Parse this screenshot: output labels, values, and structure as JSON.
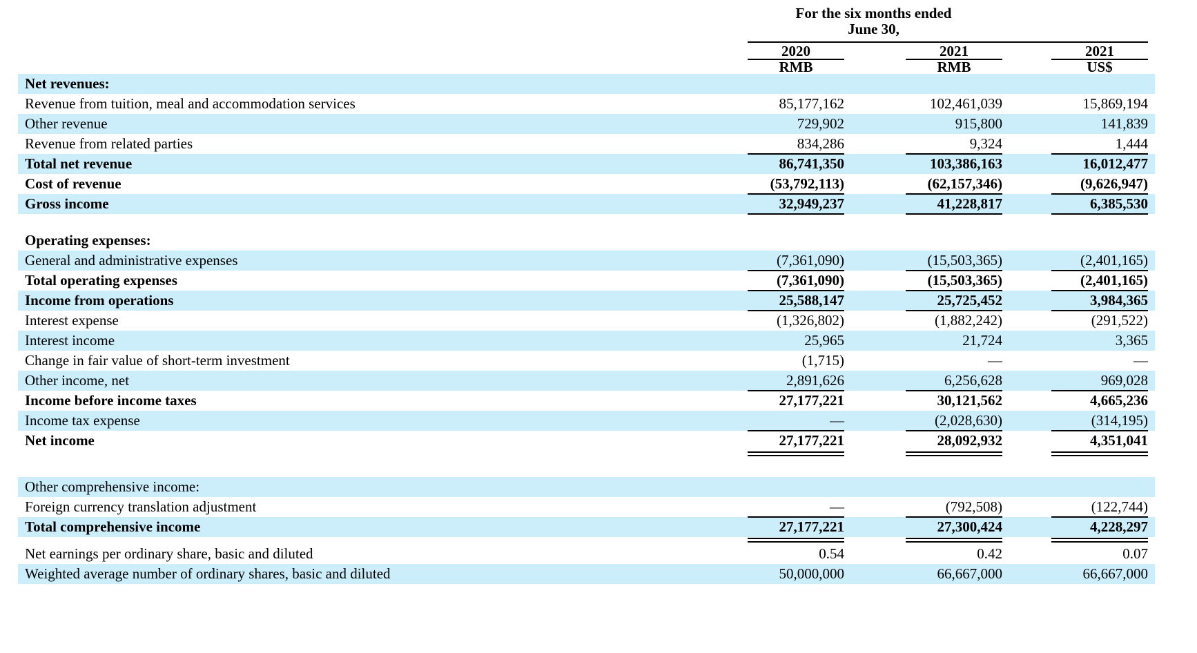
{
  "header": {
    "period_line1": "For the six months ended",
    "period_line2": "June 30,",
    "columns": [
      {
        "year": "2020",
        "currency": "RMB"
      },
      {
        "year": "2021",
        "currency": "RMB"
      },
      {
        "year": "2021",
        "currency": "US$"
      }
    ]
  },
  "colors": {
    "stripe": "#cceefb",
    "rule": "#000000",
    "text": "#000000",
    "background": "#ffffff"
  },
  "rows": [
    {
      "type": "data",
      "label": "Net revenues:",
      "values": [
        "",
        "",
        ""
      ],
      "bold": true,
      "shaded": true,
      "rule": "none"
    },
    {
      "type": "data",
      "label": "Revenue from tuition, meal and accommodation services",
      "values": [
        "85,177,162",
        "102,461,039",
        "15,869,194"
      ],
      "bold": false,
      "shaded": false,
      "rule": "none"
    },
    {
      "type": "data",
      "label": "Other revenue",
      "values": [
        "729,902",
        "915,800",
        "141,839"
      ],
      "bold": false,
      "shaded": true,
      "rule": "none"
    },
    {
      "type": "data",
      "label": "Revenue from related parties",
      "values": [
        "834,286",
        "9,324",
        "1,444"
      ],
      "bold": false,
      "shaded": false,
      "rule": "single"
    },
    {
      "type": "data",
      "label": "Total net revenue",
      "values": [
        "86,741,350",
        "103,386,163",
        "16,012,477"
      ],
      "bold": true,
      "shaded": true,
      "rule": "none"
    },
    {
      "type": "data",
      "label": "Cost of revenue",
      "values": [
        "(53,792,113)",
        "(62,157,346)",
        "(9,626,947)"
      ],
      "bold": true,
      "shaded": false,
      "rule": "single"
    },
    {
      "type": "data",
      "label": "Gross income",
      "values": [
        "32,949,237",
        "41,228,817",
        "6,385,530"
      ],
      "bold": true,
      "shaded": true,
      "rule": "single"
    },
    {
      "type": "spacer"
    },
    {
      "type": "data",
      "label": "Operating expenses:",
      "values": [
        "",
        "",
        ""
      ],
      "bold": true,
      "shaded": false,
      "rule": "none"
    },
    {
      "type": "data",
      "label": "General and administrative expenses",
      "values": [
        "(7,361,090)",
        "(15,503,365)",
        "(2,401,165)"
      ],
      "bold": false,
      "shaded": true,
      "rule": "single"
    },
    {
      "type": "data",
      "label": "Total operating expenses",
      "values": [
        "(7,361,090)",
        "(15,503,365)",
        "(2,401,165)"
      ],
      "bold": true,
      "shaded": false,
      "rule": "single"
    },
    {
      "type": "data",
      "label": "Income from operations",
      "values": [
        "25,588,147",
        "25,725,452",
        "3,984,365"
      ],
      "bold": true,
      "shaded": true,
      "rule": "single"
    },
    {
      "type": "data",
      "label": "Interest expense",
      "values": [
        "(1,326,802)",
        "(1,882,242)",
        "(291,522)"
      ],
      "bold": false,
      "shaded": false,
      "rule": "none"
    },
    {
      "type": "data",
      "label": "Interest income",
      "values": [
        "25,965",
        "21,724",
        "3,365"
      ],
      "bold": false,
      "shaded": true,
      "rule": "none"
    },
    {
      "type": "data",
      "label": "Change in fair value of short-term investment",
      "values": [
        "(1,715)",
        "—",
        "—"
      ],
      "bold": false,
      "shaded": false,
      "rule": "none"
    },
    {
      "type": "data",
      "label": "Other income, net",
      "values": [
        "2,891,626",
        "6,256,628",
        "969,028"
      ],
      "bold": false,
      "shaded": true,
      "rule": "single"
    },
    {
      "type": "data",
      "label": "Income before income taxes",
      "values": [
        "27,177,221",
        "30,121,562",
        "4,665,236"
      ],
      "bold": true,
      "shaded": false,
      "rule": "none"
    },
    {
      "type": "data",
      "label": "Income tax expense",
      "values": [
        "—",
        "(2,028,630)",
        "(314,195)"
      ],
      "bold": false,
      "shaded": true,
      "rule": "single"
    },
    {
      "type": "data",
      "label": "Net income",
      "values": [
        "27,177,221",
        "28,092,932",
        "4,351,041"
      ],
      "bold": true,
      "shaded": false,
      "rule": "double"
    },
    {
      "type": "spacer"
    },
    {
      "type": "data",
      "label": "Other comprehensive income:",
      "values": [
        "",
        "",
        ""
      ],
      "bold": false,
      "shaded": true,
      "rule": "none"
    },
    {
      "type": "data",
      "label": "Foreign currency translation adjustment",
      "values": [
        "—",
        "(792,508)",
        "(122,744)"
      ],
      "bold": false,
      "shaded": false,
      "rule": "single"
    },
    {
      "type": "data",
      "label": "Total comprehensive income",
      "values": [
        "27,177,221",
        "27,300,424",
        "4,228,297"
      ],
      "bold": true,
      "shaded": true,
      "rule": "double"
    },
    {
      "type": "spacer"
    },
    {
      "type": "data",
      "label": "Net earnings per ordinary share, basic and diluted",
      "values": [
        "0.54",
        "0.42",
        "0.07"
      ],
      "bold": false,
      "shaded": false,
      "rule": "none"
    },
    {
      "type": "data",
      "label": "Weighted average number of ordinary shares, basic and diluted",
      "values": [
        "50,000,000",
        "66,667,000",
        "66,667,000"
      ],
      "bold": false,
      "shaded": true,
      "rule": "none"
    }
  ]
}
